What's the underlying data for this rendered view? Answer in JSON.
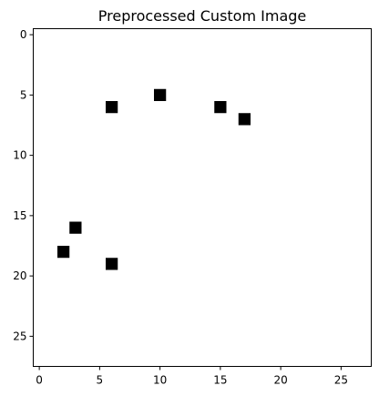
{
  "chart_data": {
    "type": "heatmap",
    "title": "Preprocessed Custom Image",
    "xlabel": "",
    "ylabel": "",
    "grid": false,
    "shape": [
      28,
      28
    ],
    "xlim": [
      -0.5,
      27.5
    ],
    "ylim": [
      27.5,
      -0.5
    ],
    "y_axis_inverted": true,
    "xticks": [
      0,
      5,
      10,
      15,
      20,
      25
    ],
    "yticks": [
      0,
      5,
      10,
      15,
      20,
      25
    ],
    "background_value": 0,
    "on_value": 1,
    "colors": {
      "background": "#ffffff",
      "on": "#000000"
    },
    "on_pixels": [
      {
        "x": 10,
        "y": 5
      },
      {
        "x": 6,
        "y": 6
      },
      {
        "x": 15,
        "y": 6
      },
      {
        "x": 17,
        "y": 7
      },
      {
        "x": 3,
        "y": 16
      },
      {
        "x": 2,
        "y": 18
      },
      {
        "x": 6,
        "y": 19
      }
    ]
  }
}
